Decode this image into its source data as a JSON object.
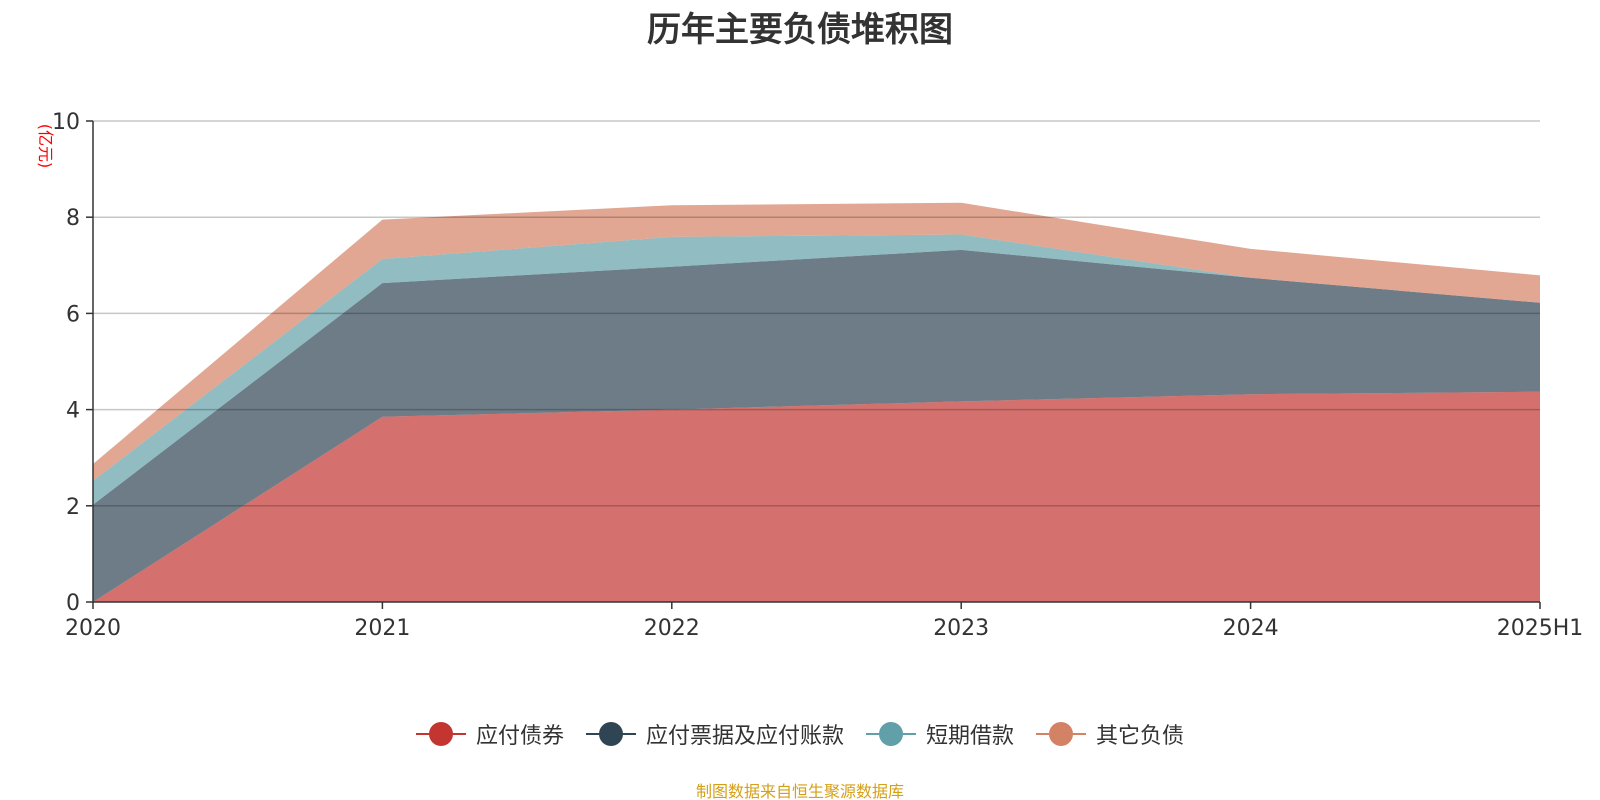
{
  "chart_data": {
    "type": "area",
    "stacked": true,
    "title": "历年主要负债堆积图",
    "y_unit_label": "(亿元)",
    "categories": [
      "2020",
      "2021",
      "2022",
      "2023",
      "2024",
      "2025H1"
    ],
    "ylim": [
      0,
      10
    ],
    "y_ticks": [
      0,
      2,
      4,
      6,
      8,
      10
    ],
    "grid": true,
    "legend_position": "bottom",
    "series": [
      {
        "name": "应付债券",
        "color": "#c23531",
        "values": [
          0,
          3.85,
          4.0,
          4.17,
          4.32,
          4.37
        ]
      },
      {
        "name": "应付票据及应付账款",
        "color": "#2f4554",
        "values": [
          2.02,
          2.78,
          2.97,
          3.15,
          2.42,
          1.85
        ]
      },
      {
        "name": "短期借款",
        "color": "#61a0a8",
        "values": [
          0.5,
          0.5,
          0.62,
          0.32,
          0,
          0
        ]
      },
      {
        "name": "其它负债",
        "color": "#d48265",
        "values": [
          0.35,
          0.82,
          0.66,
          0.66,
          0.6,
          0.57
        ]
      }
    ]
  },
  "source_note": "制图数据来自恒生聚源数据库"
}
